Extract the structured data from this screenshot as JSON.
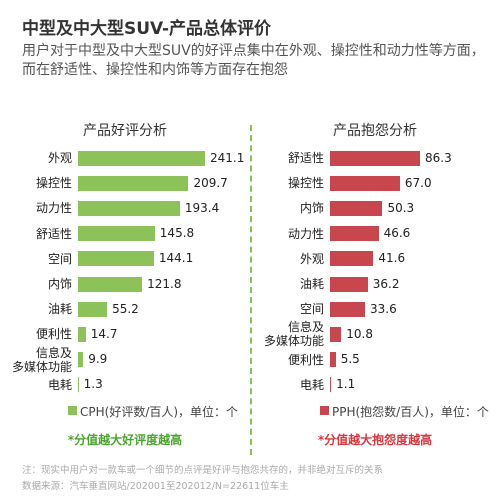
{
  "title": "中型及中大型SUV-产品总体评价",
  "subtitle": "用户对于中型及中大型SUV的好评点集中在外观、操控性和动力性等方面，而在舒适性、操控性和内饰等方面存在抱怨",
  "chart_data": [
    {
      "type": "bar",
      "orientation": "horizontal",
      "title": "产品好评分析",
      "categories": [
        "外观",
        "操控性",
        "动力性",
        "舒适性",
        "空间",
        "内饰",
        "油耗",
        "便利性",
        "信息及\n多媒体功能",
        "电耗"
      ],
      "series": [
        {
          "name": "CPH(好评数/百人)，单位：个",
          "color": "#8dc15a",
          "values": [
            241.1,
            209.7,
            193.4,
            145.8,
            144.1,
            121.8,
            55.2,
            14.7,
            9.9,
            1.3
          ]
        }
      ],
      "note": "*分值越大好评度越高",
      "note_color": "#4aa52e"
    },
    {
      "type": "bar",
      "orientation": "horizontal",
      "title": "产品抱怨分析",
      "categories": [
        "舒适性",
        "操控性",
        "内饰",
        "动力性",
        "外观",
        "油耗",
        "空间",
        "信息及\n多媒体功能",
        "便利性",
        "电耗"
      ],
      "series": [
        {
          "name": "PPH(抱怨数/百人)，单位：个",
          "color": "#c8474e",
          "values": [
            86.3,
            67.0,
            50.3,
            46.6,
            41.6,
            36.2,
            33.6,
            10.8,
            5.5,
            1.1
          ],
          "value_labels": [
            "86.3",
            "67.0",
            "50.3",
            "46.6",
            "41.6",
            "36.2",
            "33.6",
            "10.8",
            "5.5",
            "1.1"
          ]
        }
      ],
      "note": "*分值越大抱怨度越高",
      "note_color": "#d9363e"
    }
  ],
  "notes": [
    "注：现实中用户对一款车或一个细节的点评是好评与抱怨共存的，并非绝对互斥的关系",
    "数据来源：汽车垂直网站/202001至202012/N=22611位车主"
  ]
}
